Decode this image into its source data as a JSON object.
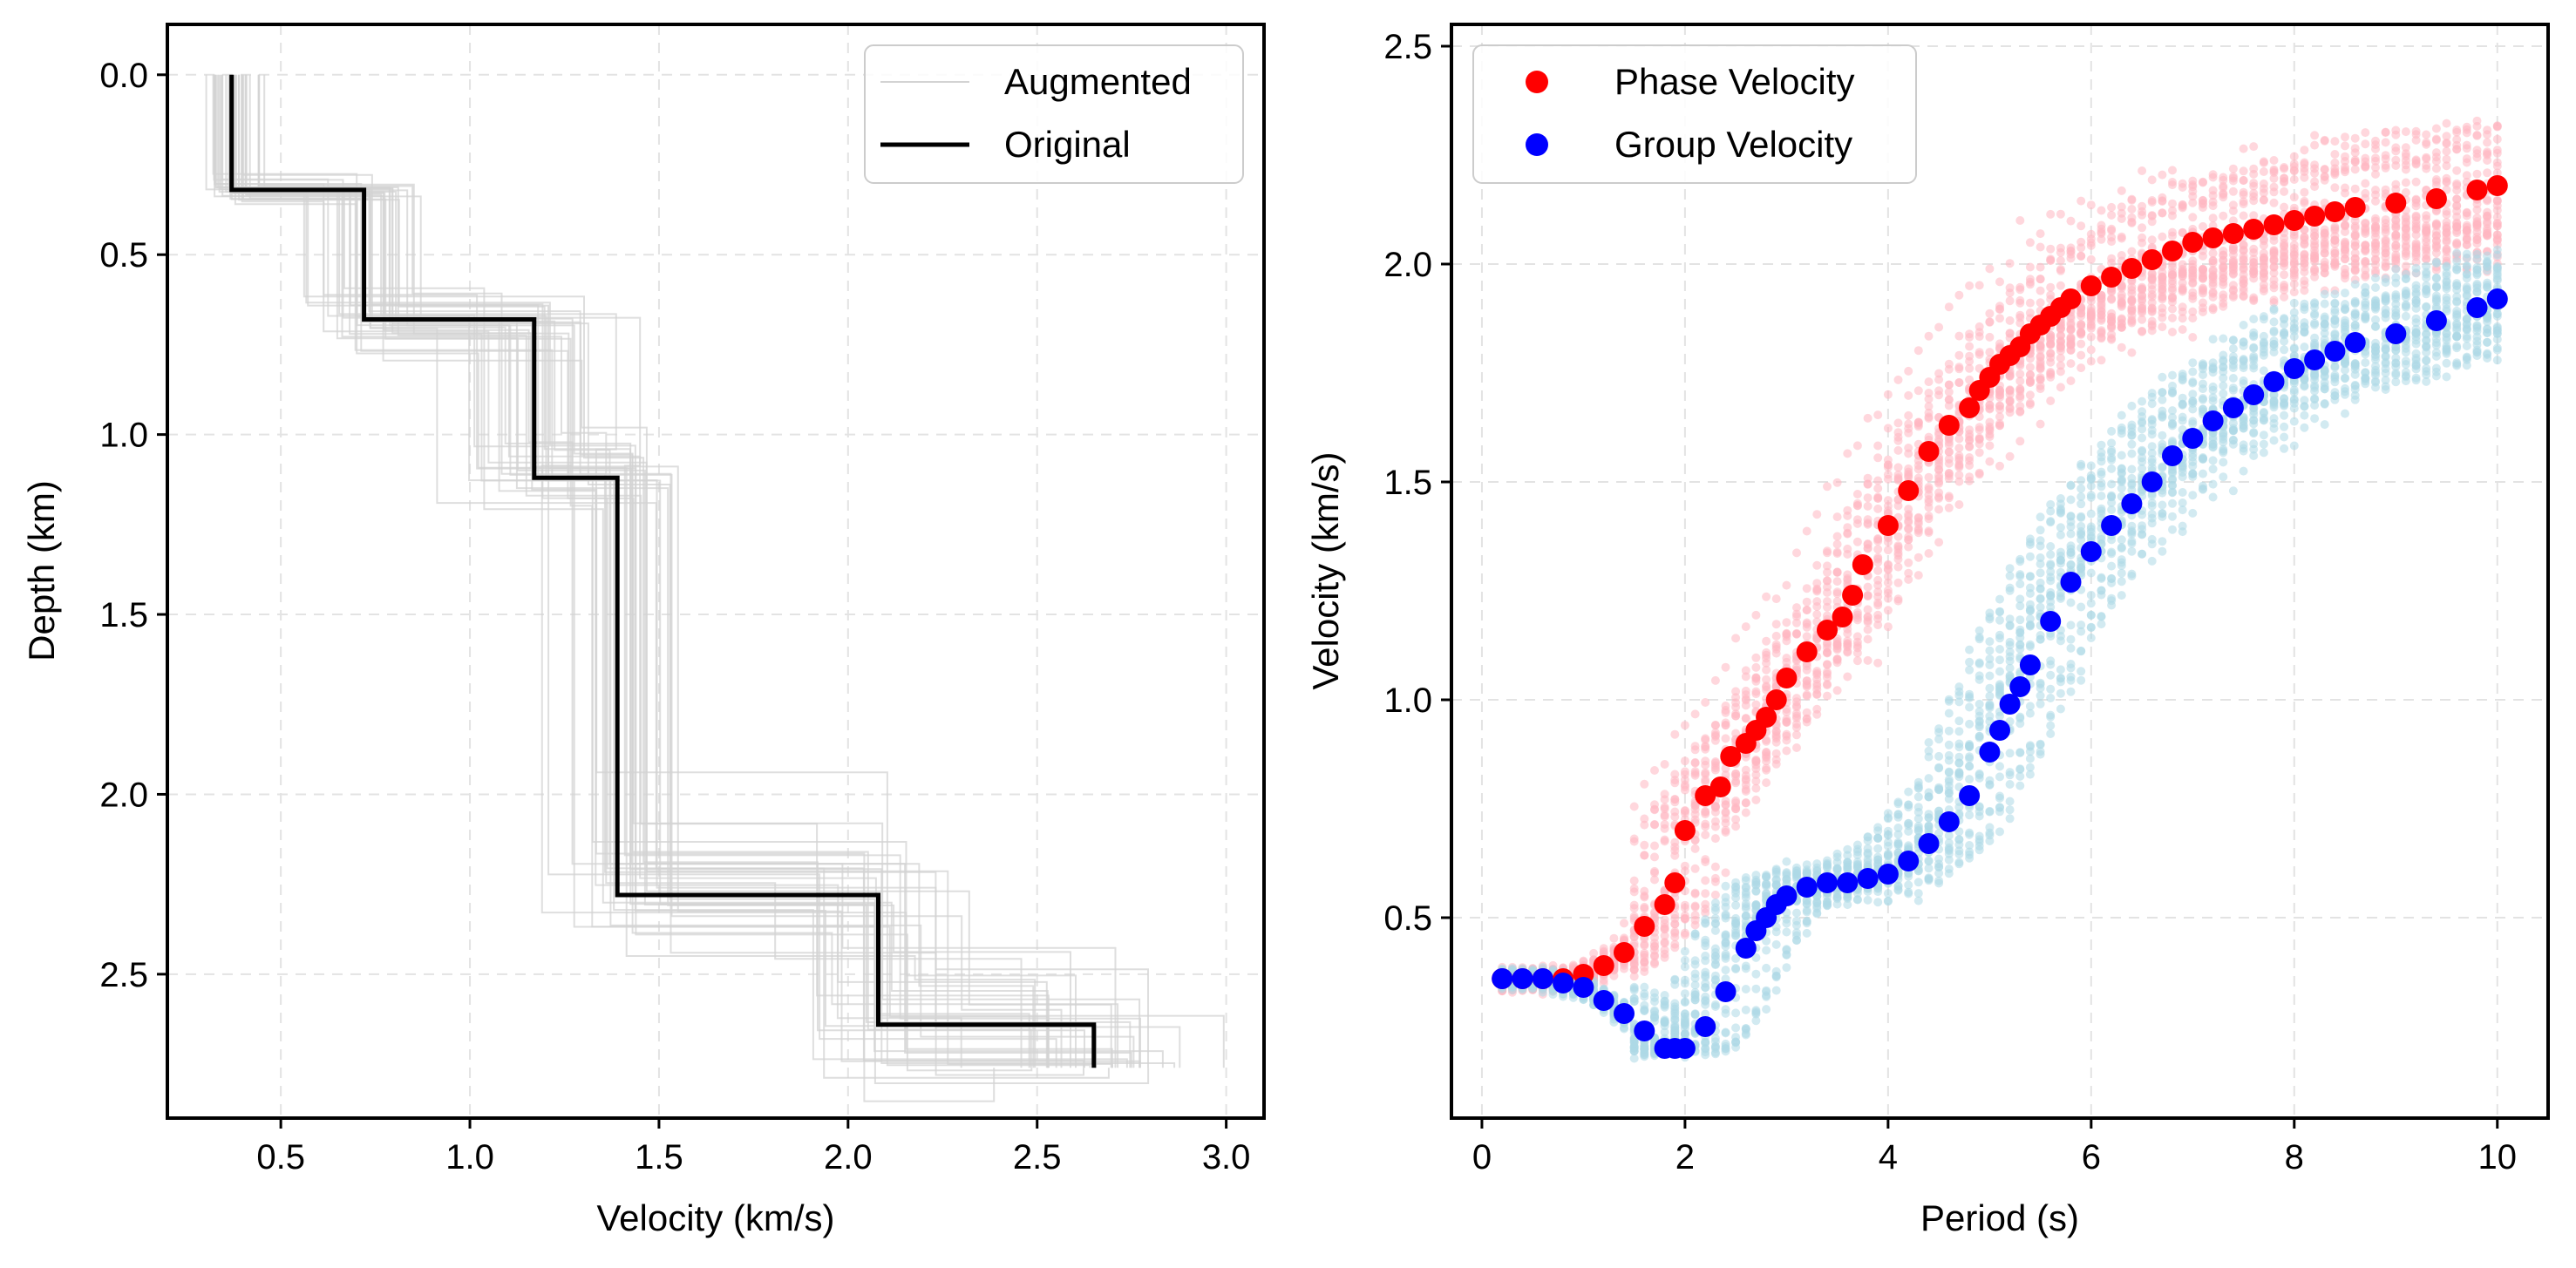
{
  "chart_data": [
    {
      "type": "line",
      "xlabel": "Velocity (km/s)",
      "ylabel": "Depth (km)",
      "xlim": [
        0.2,
        3.1
      ],
      "ylim": [
        2.9,
        -0.14
      ],
      "y_inverted": true,
      "xticks": [
        0.5,
        1.0,
        1.5,
        2.0,
        2.5,
        3.0
      ],
      "xtick_labels": [
        "0.5",
        "1.0",
        "1.5",
        "2.0",
        "2.5",
        "3.0"
      ],
      "yticks": [
        0.0,
        0.5,
        1.0,
        1.5,
        2.0,
        2.5
      ],
      "ytick_labels": [
        "0.0",
        "0.5",
        "1.0",
        "1.5",
        "2.0",
        "2.5"
      ],
      "grid": true,
      "legend_position": "upper-right",
      "legend": [
        {
          "label": "Augmented",
          "color": "#d3d3d3"
        },
        {
          "label": "Original",
          "color": "#000000"
        }
      ],
      "series": [
        {
          "name": "Original",
          "color": "#000000",
          "style": "step",
          "layers": [
            {
              "top": 0.0,
              "bottom": 0.32,
              "velocity": 0.37
            },
            {
              "top": 0.32,
              "bottom": 0.68,
              "velocity": 0.72
            },
            {
              "top": 0.68,
              "bottom": 1.12,
              "velocity": 1.17
            },
            {
              "top": 1.12,
              "bottom": 2.28,
              "velocity": 1.39
            },
            {
              "top": 2.28,
              "bottom": 2.64,
              "velocity": 2.08
            },
            {
              "top": 2.64,
              "bottom": 2.76,
              "velocity": 2.65
            }
          ]
        },
        {
          "name": "Augmented",
          "color": "#d3d3d3",
          "style": "step",
          "count": 40,
          "velocity_spread": [
            0.06,
            0.11,
            0.14,
            0.12,
            0.13,
            0.19
          ],
          "depth_spread": [
            0.03,
            0.06,
            0.1,
            0.14,
            0.14,
            0.0
          ]
        }
      ]
    },
    {
      "type": "scatter",
      "xlabel": "Period (s)",
      "ylabel": "Velocity (km/s)",
      "xlim": [
        -0.3,
        10.5
      ],
      "ylim": [
        0.04,
        2.55
      ],
      "xticks": [
        0,
        2,
        4,
        6,
        8,
        10
      ],
      "xtick_labels": [
        "0",
        "2",
        "4",
        "6",
        "8",
        "10"
      ],
      "yticks": [
        0.5,
        1.0,
        1.5,
        2.0,
        2.5
      ],
      "ytick_labels": [
        "0.5",
        "1.0",
        "1.5",
        "2.0",
        "2.5"
      ],
      "grid": true,
      "legend_position": "upper-left",
      "legend": [
        {
          "label": "Phase Velocity",
          "color": "#ff0000"
        },
        {
          "label": "Group Velocity",
          "color": "#0000ff"
        }
      ],
      "series": [
        {
          "name": "Phase Velocity",
          "color": "#ff0000",
          "augmented_color": "#ffb6c1",
          "augmented_spread": [
            0.03,
            0.05,
            0.18,
            0.28,
            0.25,
            0.15
          ],
          "x": [
            0.2,
            0.4,
            0.6,
            0.8,
            1.0,
            1.2,
            1.4,
            1.6,
            1.8,
            1.9,
            2.0,
            2.2,
            2.35,
            2.45,
            2.6,
            2.7,
            2.8,
            2.9,
            3.0,
            3.2,
            3.4,
            3.55,
            3.65,
            3.75,
            4.0,
            4.2,
            4.4,
            4.6,
            4.8,
            4.9,
            5.0,
            5.1,
            5.2,
            5.3,
            5.4,
            5.5,
            5.6,
            5.7,
            5.8,
            6.0,
            6.2,
            6.4,
            6.6,
            6.8,
            7.0,
            7.2,
            7.4,
            7.6,
            7.8,
            8.0,
            8.2,
            8.4,
            8.6,
            9.0,
            9.4,
            9.8,
            10.0
          ],
          "values": [
            0.36,
            0.36,
            0.36,
            0.36,
            0.37,
            0.39,
            0.42,
            0.48,
            0.53,
            0.58,
            0.7,
            0.78,
            0.8,
            0.87,
            0.9,
            0.93,
            0.96,
            1.0,
            1.05,
            1.11,
            1.16,
            1.19,
            1.24,
            1.31,
            1.4,
            1.48,
            1.57,
            1.63,
            1.67,
            1.71,
            1.74,
            1.77,
            1.79,
            1.81,
            1.84,
            1.86,
            1.88,
            1.9,
            1.92,
            1.95,
            1.97,
            1.99,
            2.01,
            2.03,
            2.05,
            2.06,
            2.07,
            2.08,
            2.09,
            2.1,
            2.11,
            2.12,
            2.13,
            2.14,
            2.15,
            2.17,
            2.18
          ]
        },
        {
          "name": "Group Velocity",
          "color": "#0000ff",
          "augmented_color": "#add8e6",
          "augmented_spread": [
            0.03,
            0.08,
            0.1,
            0.25,
            0.25,
            0.15
          ],
          "x": [
            0.2,
            0.4,
            0.6,
            0.8,
            1.0,
            1.2,
            1.4,
            1.6,
            1.8,
            1.9,
            2.0,
            2.2,
            2.4,
            2.6,
            2.7,
            2.8,
            2.9,
            3.0,
            3.2,
            3.4,
            3.6,
            3.8,
            4.0,
            4.2,
            4.4,
            4.6,
            4.8,
            5.0,
            5.1,
            5.2,
            5.3,
            5.4,
            5.6,
            5.8,
            6.0,
            6.2,
            6.4,
            6.6,
            6.8,
            7.0,
            7.2,
            7.4,
            7.6,
            7.8,
            8.0,
            8.2,
            8.4,
            8.6,
            9.0,
            9.4,
            9.8,
            10.0
          ],
          "values": [
            0.36,
            0.36,
            0.36,
            0.35,
            0.34,
            0.31,
            0.28,
            0.24,
            0.2,
            0.2,
            0.2,
            0.25,
            0.33,
            0.43,
            0.47,
            0.5,
            0.53,
            0.55,
            0.57,
            0.58,
            0.58,
            0.59,
            0.6,
            0.63,
            0.67,
            0.72,
            0.78,
            0.88,
            0.93,
            0.99,
            1.03,
            1.08,
            1.18,
            1.27,
            1.34,
            1.4,
            1.45,
            1.5,
            1.56,
            1.6,
            1.64,
            1.67,
            1.7,
            1.73,
            1.76,
            1.78,
            1.8,
            1.82,
            1.84,
            1.87,
            1.9,
            1.92
          ]
        }
      ]
    }
  ]
}
